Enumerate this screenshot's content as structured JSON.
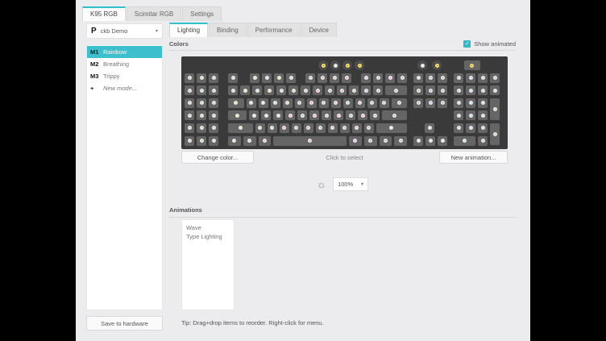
{
  "device_tabs": [
    {
      "label": "K95 RGB",
      "active": true
    },
    {
      "label": "Scimitar RGB",
      "active": false
    },
    {
      "label": "Settings",
      "active": false
    }
  ],
  "sidebar": {
    "profile": {
      "icon": "P",
      "name": "ckb Demo"
    },
    "modes": [
      {
        "key": "M1",
        "label": "Rainbow",
        "selected": true
      },
      {
        "key": "M2",
        "label": "Breathing",
        "selected": false
      },
      {
        "key": "M3",
        "label": "Trippy",
        "selected": false
      },
      {
        "key": "+",
        "label": "New mode...",
        "selected": false,
        "italic": true
      }
    ],
    "save_button": "Save to hardware"
  },
  "main": {
    "tabs": [
      {
        "label": "Lighting",
        "active": true
      },
      {
        "label": "Binding",
        "active": false
      },
      {
        "label": "Performance",
        "active": false
      },
      {
        "label": "Device",
        "active": false
      }
    ],
    "colors_header": "Colors",
    "show_animated": {
      "label": "Show animated",
      "checked": true,
      "accent": "#2fb9c9"
    },
    "buttons": {
      "change_color": "Change color...",
      "hint": "Click to select",
      "new_animation": "New animation..."
    },
    "brightness": {
      "icon": "brightness-sun",
      "value": "100%"
    },
    "animations_header": "Animations",
    "animations": [
      "Wave",
      "Type Lighting"
    ],
    "tip": "Tip: Drag+drop items to reorder. Right-click for menu."
  },
  "keyboard": {
    "bg": "#3a3a3a",
    "key_bg": "#656565",
    "ring": "#e8e8e8",
    "indicator_ring": "#ffe066",
    "palette": {
      "grn": "#33cc33",
      "ygr": "#aadd00",
      "yel": "#ffdd00",
      "amb": "#ffbb00",
      "org": "#ff9900",
      "ord": "#ff5511",
      "red": "#ff1a1a",
      "crm": "#ff0066",
      "pnk": "#ff33aa",
      "mag": "#ee22cc",
      "vio": "#9922ee",
      "pvl": "#bb33ee",
      "blv": "#5533ee",
      "blu": "#2233ee",
      "blb": "#2255ff",
      "cyb": "#33aaff",
      "cyn": "#33ddee",
      "spr": "#33eeaa",
      "lav": "#ddccff",
      "wht": "#ffffff",
      "ind": "#1a1a1a"
    },
    "rows": [
      {
        "keys": [
          {
            "sp": 166,
            "round": true,
            "c": "ind",
            "ir": true,
            "n": "mr-key"
          },
          {
            "round": true,
            "c": "wht",
            "n": "m1-key"
          },
          {
            "round": true,
            "c": "ind",
            "ir": true,
            "n": "m2-key"
          },
          {
            "round": true,
            "c": "ind",
            "ir": true,
            "n": "m3-key"
          },
          {
            "sp": 63,
            "round": true,
            "c": "wht",
            "n": "brightness-key"
          },
          {
            "sp": 3,
            "round": true,
            "c": "ind",
            "ir": true,
            "n": "winlock-key"
          },
          {
            "sp": 25,
            "w": 1.5,
            "c": "ind",
            "ir": true,
            "n": "mute-key"
          }
        ]
      },
      {
        "keys": [
          {
            "c": "grn",
            "n": "g1-key"
          },
          {
            "c": "grn",
            "n": "g2-key"
          },
          {
            "c": "grn",
            "n": "g3-key"
          },
          {
            "sp": 9,
            "c": "grn",
            "n": "esc-key"
          },
          {
            "sp": 12,
            "c": "yel",
            "n": "f1-key"
          },
          {
            "c": "yel",
            "n": "f2-key"
          },
          {
            "c": "yel",
            "n": "f3-key"
          },
          {
            "c": "org",
            "n": "f4-key"
          },
          {
            "sp": 9,
            "c": "red",
            "n": "f5-key"
          },
          {
            "c": "red",
            "n": "f6-key"
          },
          {
            "c": "red",
            "n": "f7-key"
          },
          {
            "c": "crm",
            "n": "f8-key"
          },
          {
            "sp": 9,
            "c": "mag",
            "n": "f9-key"
          },
          {
            "c": "mag",
            "n": "f10-key"
          },
          {
            "c": "mag",
            "n": "f11-key"
          },
          {
            "c": "vio",
            "n": "f12-key"
          },
          {
            "sp": 5,
            "c": "lav",
            "n": "printscreen-key"
          },
          {
            "c": "blu",
            "n": "scrolllock-key"
          },
          {
            "c": "blu",
            "n": "pause-key"
          },
          {
            "sp": 5,
            "c": "cyb",
            "n": "media-stop-key"
          },
          {
            "c": "cyb",
            "n": "media-prev-key"
          },
          {
            "c": "cyb",
            "n": "media-play-key"
          },
          {
            "c": "cyb",
            "n": "media-next-key"
          }
        ]
      },
      {
        "keys": [
          {
            "c": "grn",
            "n": "g4-key"
          },
          {
            "c": "grn",
            "n": "g5-key"
          },
          {
            "c": "grn",
            "n": "g6-key"
          },
          {
            "sp": 9,
            "c": "ygr",
            "n": "grave-key"
          },
          {
            "c": "yel",
            "n": "1-key"
          },
          {
            "c": "yel",
            "n": "2-key"
          },
          {
            "c": "yel",
            "n": "3-key"
          },
          {
            "c": "org",
            "n": "4-key"
          },
          {
            "c": "org",
            "n": "5-key"
          },
          {
            "c": "ord",
            "n": "6-key"
          },
          {
            "c": "red",
            "n": "7-key"
          },
          {
            "c": "red",
            "n": "8-key"
          },
          {
            "c": "crm",
            "n": "9-key"
          },
          {
            "c": "pnk",
            "n": "0-key"
          },
          {
            "c": "mag",
            "n": "minus-key"
          },
          {
            "c": "mag",
            "n": "equals-key"
          },
          {
            "w": 2,
            "c": "vio",
            "n": "backspace-key"
          },
          {
            "sp": 5,
            "c": "blu",
            "n": "insert-key"
          },
          {
            "c": "blb",
            "n": "home-key"
          },
          {
            "c": "blb",
            "n": "pageup-key"
          },
          {
            "sp": 5,
            "c": "cyn",
            "n": "numlock-key"
          },
          {
            "c": "cyn",
            "n": "numpad-divide-key"
          },
          {
            "c": "cyn",
            "n": "numpad-multiply-key"
          },
          {
            "c": "spr",
            "n": "numpad-minus-key"
          }
        ]
      },
      {
        "keys": [
          {
            "c": "grn",
            "n": "g7-key"
          },
          {
            "c": "grn",
            "n": "g8-key"
          },
          {
            "c": "grn",
            "n": "g9-key"
          },
          {
            "sp": 9,
            "w": 1.5,
            "c": "ygr",
            "n": "tab-key"
          },
          {
            "c": "yel",
            "n": "q-key"
          },
          {
            "c": "wht",
            "n": "w-key"
          },
          {
            "c": "org",
            "n": "e-key"
          },
          {
            "c": "org",
            "n": "r-key"
          },
          {
            "c": "red",
            "n": "t-key"
          },
          {
            "c": "red",
            "n": "y-key"
          },
          {
            "c": "red",
            "n": "u-key"
          },
          {
            "c": "pnk",
            "n": "i-key"
          },
          {
            "c": "pnk",
            "n": "o-key"
          },
          {
            "c": "mag",
            "n": "p-key"
          },
          {
            "c": "mag",
            "n": "lbracket-key"
          },
          {
            "c": "vio",
            "n": "rbracket-key"
          },
          {
            "w": 1.5,
            "c": "vio",
            "n": "backslash-key"
          },
          {
            "sp": 5,
            "c": "blu",
            "n": "delete-key"
          },
          {
            "c": "blb",
            "n": "end-key"
          },
          {
            "c": "blb",
            "n": "pagedown-key"
          },
          {
            "sp": 5,
            "c": "cyn",
            "n": "numpad-7-key"
          },
          {
            "c": "cyn",
            "n": "numpad-8-key"
          },
          {
            "c": "cyn",
            "n": "numpad-9-key"
          },
          {
            "c": "grn",
            "h": 2,
            "n": "numpad-plus-key"
          }
        ]
      },
      {
        "keys": [
          {
            "c": "grn",
            "n": "g10-key"
          },
          {
            "c": "grn",
            "n": "g11-key"
          },
          {
            "c": "grn",
            "n": "g12-key"
          },
          {
            "sp": 9,
            "w": 1.75,
            "c": "yel",
            "n": "capslock-key"
          },
          {
            "c": "wht",
            "n": "a-key"
          },
          {
            "c": "wht",
            "n": "s-key"
          },
          {
            "c": "wht",
            "n": "d-key"
          },
          {
            "c": "red",
            "n": "f-key"
          },
          {
            "c": "red",
            "n": "g-key"
          },
          {
            "c": "crm",
            "n": "h-key"
          },
          {
            "c": "pnk",
            "n": "j-key"
          },
          {
            "c": "pnk",
            "n": "k-key"
          },
          {
            "c": "mag",
            "n": "l-key"
          },
          {
            "c": "mag",
            "n": "semicolon-key"
          },
          {
            "c": "vio",
            "n": "quote-key"
          },
          {
            "w": 2.25,
            "c": "blv",
            "n": "enter-key"
          },
          {
            "sp": 55,
            "c": "cyn",
            "n": "numpad-4-key"
          },
          {
            "c": "cyn",
            "n": "numpad-5-key"
          },
          {
            "c": "cyn",
            "n": "numpad-6-key"
          }
        ]
      },
      {
        "keys": [
          {
            "c": "grn",
            "n": "g13-key"
          },
          {
            "c": "grn",
            "n": "g14-key"
          },
          {
            "c": "grn",
            "n": "g15-key"
          },
          {
            "sp": 9,
            "w": 2.25,
            "c": "yel",
            "n": "lshift-key"
          },
          {
            "c": "org",
            "n": "z-key"
          },
          {
            "c": "org",
            "n": "x-key"
          },
          {
            "c": "red",
            "n": "c-key"
          },
          {
            "c": "red",
            "n": "v-key"
          },
          {
            "c": "red",
            "n": "b-key"
          },
          {
            "c": "crm",
            "n": "n-key"
          },
          {
            "c": "pnk",
            "n": "m-key"
          },
          {
            "c": "mag",
            "n": "comma-key"
          },
          {
            "c": "mag",
            "n": "period-key"
          },
          {
            "c": "vio",
            "n": "slash-key"
          },
          {
            "w": 2.75,
            "c": "wht",
            "n": "rshift-key"
          },
          {
            "sp": 19,
            "c": "wht",
            "n": "arrow-up-key"
          },
          {
            "sp": 21,
            "c": "cyn",
            "n": "numpad-1-key"
          },
          {
            "c": "cyn",
            "n": "numpad-2-key"
          },
          {
            "c": "cyn",
            "n": "numpad-3-key"
          },
          {
            "c": "grn",
            "h": 2,
            "n": "numpad-enter-key"
          }
        ]
      },
      {
        "keys": [
          {
            "c": "grn",
            "n": "g16-key"
          },
          {
            "c": "grn",
            "n": "g17-key"
          },
          {
            "c": "ygr",
            "n": "g18-key"
          },
          {
            "sp": 9,
            "w": 1.25,
            "c": "amb",
            "n": "lctrl-key"
          },
          {
            "w": 1.25,
            "c": "org",
            "n": "lwin-key"
          },
          {
            "w": 1.25,
            "c": "ord",
            "n": "lalt-key"
          },
          {
            "w": 6.25,
            "c": "crm",
            "n": "space-key"
          },
          {
            "w": 1.25,
            "c": "pvl",
            "n": "ralt-key"
          },
          {
            "w": 1.25,
            "c": "vio",
            "n": "rwin-key"
          },
          {
            "w": 1.25,
            "c": "blv",
            "n": "menu-key"
          },
          {
            "w": 1.25,
            "c": "blu",
            "n": "rctrl-key"
          },
          {
            "sp": 5,
            "c": "wht",
            "n": "arrow-left-key"
          },
          {
            "c": "wht",
            "n": "arrow-down-key"
          },
          {
            "c": "wht",
            "n": "arrow-right-key"
          },
          {
            "sp": 5,
            "w": 2,
            "c": "cyn",
            "n": "numpad-0-key"
          },
          {
            "c": "grn",
            "n": "numpad-dot-key"
          }
        ]
      }
    ]
  }
}
